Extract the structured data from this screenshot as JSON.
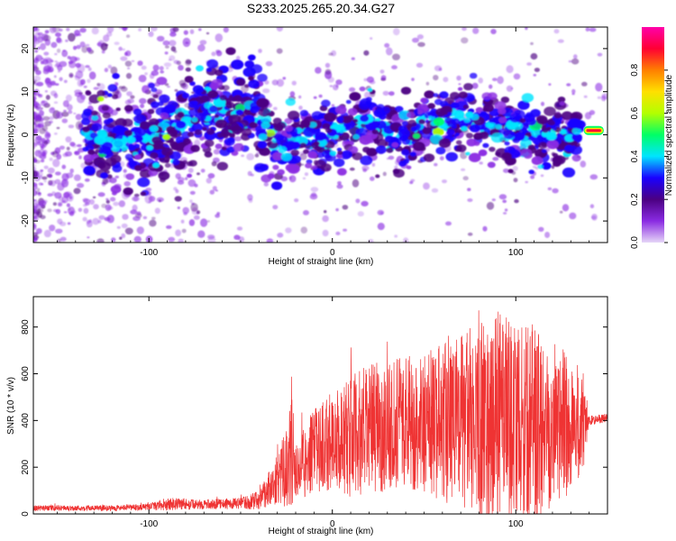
{
  "title": "S233.2025.265.20.34.G27",
  "chart_data": [
    {
      "type": "heatmap",
      "name": "spectrogram",
      "xlabel": "Height of straight line (km)",
      "ylabel": "Frequency (Hz)",
      "xlim": [
        -163,
        150
      ],
      "ylim": [
        -25,
        25
      ],
      "xticks": [
        -100,
        0,
        100
      ],
      "xtick_labels": [
        "-100",
        "0",
        "100"
      ],
      "yticks": [
        -20,
        -10,
        0,
        10,
        20
      ],
      "ytick_labels": [
        "-20",
        "-10",
        "0",
        "10",
        "20"
      ],
      "colorbar": {
        "label": "Normalized spectral amplitude",
        "range": [
          0,
          1
        ],
        "ticks": [
          0,
          0.2,
          0.4,
          0.6,
          0.8
        ],
        "tick_labels": [
          "0.0",
          "0.2",
          "0.4",
          "0.6",
          "0.8"
        ],
        "colors": [
          "#e6d6f7",
          "#8a2be2",
          "#4b0082",
          "#1a00ff",
          "#00e5ff",
          "#00ff66",
          "#b3ff00",
          "#ffe000",
          "#ff7f00",
          "#ff0033",
          "#ff00aa"
        ]
      },
      "ridge": {
        "x": [
          -130,
          -110,
          -95,
          -85,
          -75,
          -65,
          -55,
          -45,
          -38,
          -30,
          -25,
          -20,
          -10,
          0,
          10,
          20,
          30,
          40,
          50,
          60,
          70,
          80,
          90,
          100,
          110,
          120,
          130,
          140,
          150
        ],
        "freq": [
          -1,
          -2,
          0,
          2,
          5,
          6,
          4,
          8,
          4,
          -2,
          -5,
          -1,
          0,
          0,
          1,
          3,
          1,
          0,
          2,
          3,
          4,
          3,
          1,
          0,
          -1,
          0,
          0,
          1,
          1
        ]
      },
      "peak": {
        "x": [
          137,
          148
        ],
        "freq": 1,
        "amplitude": 1.0
      }
    },
    {
      "type": "line",
      "name": "snr",
      "xlabel": "Height of straight line (km)",
      "ylabel": "SNR (10 * v/v)",
      "xlim": [
        -163,
        150
      ],
      "ylim": [
        0,
        930
      ],
      "xticks": [
        -100,
        0,
        100
      ],
      "xtick_labels": [
        "-100",
        "0",
        "100"
      ],
      "yticks": [
        0,
        200,
        400,
        600,
        800
      ],
      "ytick_labels": [
        "0",
        "200",
        "400",
        "600",
        "800"
      ],
      "color": "#ef3333",
      "envelope": {
        "x": [
          -163,
          -120,
          -100,
          -85,
          -75,
          -50,
          -40,
          -30,
          -25,
          -22,
          -20,
          -10,
          0,
          10,
          20,
          40,
          60,
          80,
          90,
          100,
          110,
          120,
          130,
          137,
          140,
          150
        ],
        "mean": [
          25,
          25,
          30,
          45,
          40,
          45,
          60,
          150,
          200,
          250,
          180,
          270,
          310,
          330,
          360,
          400,
          380,
          400,
          410,
          400,
          380,
          390,
          380,
          390,
          400,
          410
        ],
        "amp": [
          12,
          12,
          15,
          30,
          20,
          25,
          40,
          110,
          170,
          250,
          140,
          180,
          210,
          260,
          280,
          280,
          350,
          420,
          470,
          400,
          430,
          350,
          300,
          220,
          20,
          20
        ]
      }
    }
  ]
}
